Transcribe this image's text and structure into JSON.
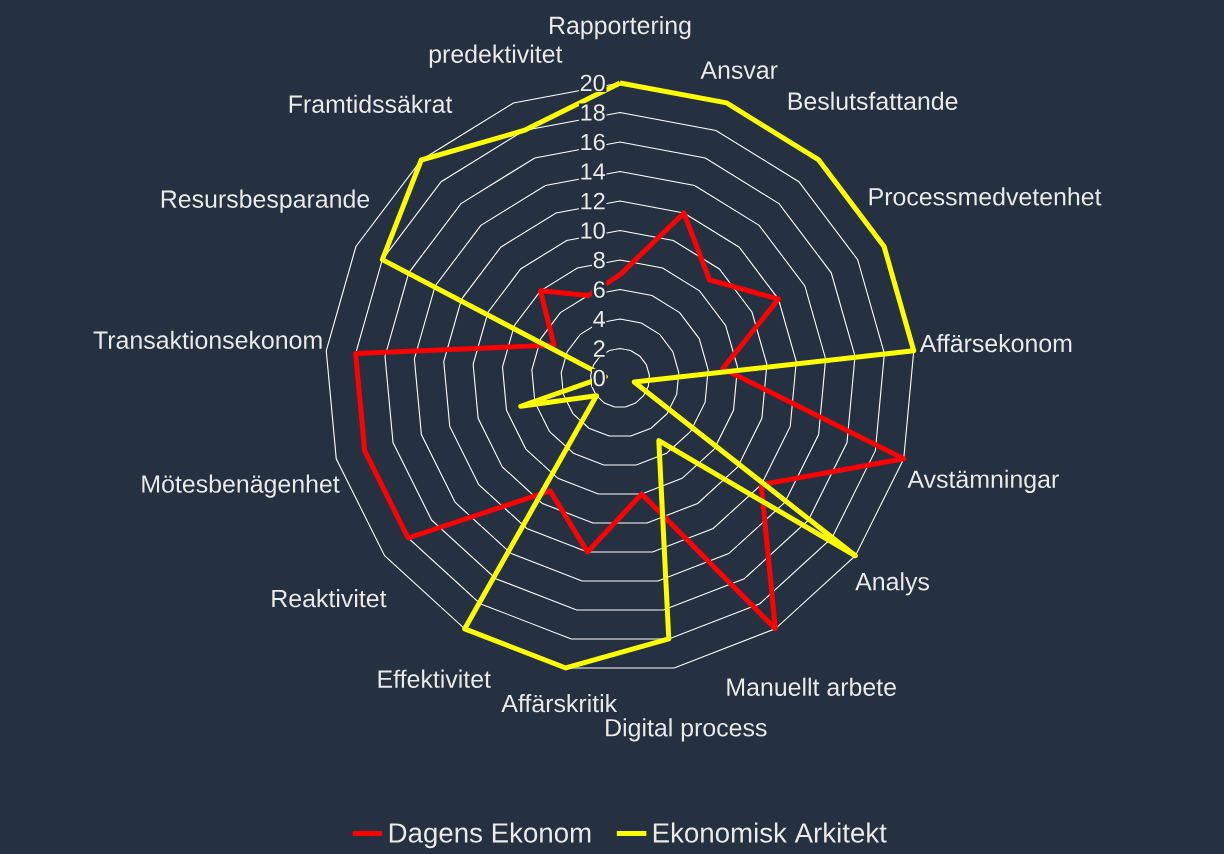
{
  "chart_data": {
    "type": "radar",
    "categories": [
      "Rapportering",
      "Ansvar",
      "Beslutsfattande",
      "Processmedvetenhet",
      "Affärsekonom",
      "Avstämningar",
      "Analys",
      "Manuellt arbete",
      "Digital process",
      "Affärskritik",
      "Effektivitet",
      "Reaktivitet",
      "Mötesbenägenhet",
      "Transaktionsekonom",
      "Resursbesparande",
      "Framtidssäkrat",
      "predektivitet"
    ],
    "series": [
      {
        "name": "Dagens Ekonom",
        "color": "#ff0000",
        "values": [
          7,
          12,
          9,
          12,
          7,
          20,
          12,
          20,
          8,
          12,
          9,
          18,
          18,
          18,
          5,
          8,
          6
        ]
      },
      {
        "name": "Ekonomisk Arkitekt",
        "color": "#ffff00",
        "values": [
          20,
          20,
          20,
          20,
          20,
          1,
          20,
          5,
          18,
          20,
          20,
          2,
          7,
          1,
          18,
          20,
          18
        ]
      }
    ],
    "ylim": [
      0,
      20
    ],
    "yticks": [
      0,
      2,
      4,
      6,
      8,
      10,
      12,
      14,
      16,
      18,
      20
    ],
    "grid": true,
    "legend": "bottom"
  }
}
